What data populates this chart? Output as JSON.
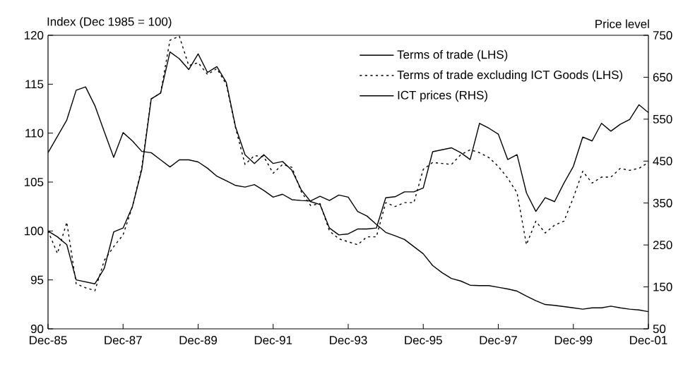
{
  "chart_data": {
    "type": "line",
    "ylabel": "Index (Dec 1985 = 100)",
    "y2label": "Price level",
    "x": [
      "1985-12",
      "1986-03",
      "1986-06",
      "1986-09",
      "1986-12",
      "1987-03",
      "1987-06",
      "1987-09",
      "1987-12",
      "1988-03",
      "1988-06",
      "1988-09",
      "1988-12",
      "1989-03",
      "1989-06",
      "1989-09",
      "1989-12",
      "1990-03",
      "1990-06",
      "1990-09",
      "1990-12",
      "1991-03",
      "1991-06",
      "1991-09",
      "1991-12",
      "1992-03",
      "1992-06",
      "1992-09",
      "1992-12",
      "1993-03",
      "1993-06",
      "1993-09",
      "1993-12",
      "1994-03",
      "1994-06",
      "1994-09",
      "1994-12",
      "1995-03",
      "1995-06",
      "1995-09",
      "1995-12",
      "1996-03",
      "1996-06",
      "1996-09",
      "1996-12",
      "1997-03",
      "1997-06",
      "1997-09",
      "1997-12",
      "1998-03",
      "1998-06",
      "1998-09",
      "1998-12",
      "1999-03",
      "1999-06",
      "1999-09",
      "1999-12",
      "2000-03",
      "2000-06",
      "2000-09",
      "2000-12",
      "2001-03",
      "2001-06",
      "2001-09",
      "2001-12"
    ],
    "series": [
      {
        "name": "Terms of trade (LHS)",
        "color": "#000000",
        "line_style": "solid",
        "values": [
          100.0,
          99.4,
          98.6,
          95.0,
          94.8,
          94.6,
          96.2,
          99.9,
          100.3,
          102.5,
          106.3,
          113.5,
          114.1,
          118.3,
          117.6,
          116.5,
          118.1,
          116.2,
          116.8,
          115.2,
          110.6,
          107.8,
          106.9,
          107.8,
          106.9,
          107.1,
          106.2,
          104.2,
          103.0,
          102.7,
          100.3,
          99.6,
          99.7,
          100.2,
          100.2,
          100.3,
          103.4,
          103.5,
          104.0,
          104.0,
          104.4,
          108.1,
          108.3,
          108.5,
          108.0,
          107.3,
          111.0,
          110.5,
          109.9,
          107.3,
          107.8,
          103.9,
          102.0,
          103.4,
          103.0,
          104.9,
          106.6,
          109.6,
          109.2,
          111.0,
          110.2,
          110.9,
          111.4,
          112.9,
          112.1
        ]
      },
      {
        "name": "Terms of trade excluding ICT Goods (LHS)",
        "color": "#000000",
        "line_style": "dashed",
        "values": [
          100.0,
          97.7,
          100.9,
          94.6,
          94.2,
          93.9,
          97.0,
          98.4,
          99.6,
          102.5,
          106.5,
          113.5,
          114.1,
          119.5,
          119.9,
          116.9,
          117.2,
          116.0,
          116.6,
          115.0,
          110.5,
          106.8,
          107.7,
          107.6,
          105.9,
          106.8,
          106.5,
          104.0,
          102.6,
          102.8,
          100.0,
          99.2,
          98.9,
          98.6,
          99.4,
          99.4,
          102.9,
          102.5,
          102.9,
          102.9,
          106.3,
          107.0,
          106.9,
          106.8,
          107.8,
          108.3,
          108.0,
          107.5,
          106.6,
          105.4,
          103.9,
          98.6,
          101.0,
          99.8,
          100.6,
          101.0,
          103.4,
          106.1,
          104.9,
          105.5,
          105.5,
          106.4,
          106.2,
          106.4,
          107.0
        ]
      },
      {
        "name": "ICT prices (RHS)",
        "color": "#000000",
        "line_style": "solid",
        "axis": "y2",
        "values": [
          470,
          509,
          548,
          619,
          627,
          582,
          520,
          459,
          518,
          498,
          473,
          470,
          453,
          436,
          453,
          453,
          448,
          433,
          414,
          403,
          392,
          388,
          394,
          380,
          364,
          371,
          358,
          356,
          355,
          366,
          356,
          369,
          364,
          330,
          319,
          299,
          280,
          272,
          263,
          246,
          229,
          201,
          184,
          170,
          164,
          154,
          153,
          153,
          149,
          145,
          140,
          128,
          117,
          108,
          106,
          103,
          100,
          97,
          100,
          100,
          104,
          100,
          97,
          95,
          91
        ]
      }
    ],
    "xlim": [
      "1985-12",
      "2001-12"
    ],
    "xticks": [
      {
        "value": "1985-12",
        "label": "Dec-85"
      },
      {
        "value": "1987-12",
        "label": "Dec-87"
      },
      {
        "value": "1989-12",
        "label": "Dec-89"
      },
      {
        "value": "1991-12",
        "label": "Dec-91"
      },
      {
        "value": "1993-12",
        "label": "Dec-93"
      },
      {
        "value": "1995-12",
        "label": "Dec-95"
      },
      {
        "value": "1997-12",
        "label": "Dec-97"
      },
      {
        "value": "1999-12",
        "label": "Dec-99"
      },
      {
        "value": "2001-12",
        "label": "Dec-01"
      }
    ],
    "ylim": [
      90,
      120
    ],
    "yticks": [
      90,
      95,
      100,
      105,
      110,
      115,
      120
    ],
    "y2lim": [
      50,
      750
    ],
    "y2ticks": [
      50,
      150,
      250,
      350,
      450,
      550,
      650,
      750
    ],
    "legend": "top right",
    "grid": false,
    "marker": "none"
  }
}
